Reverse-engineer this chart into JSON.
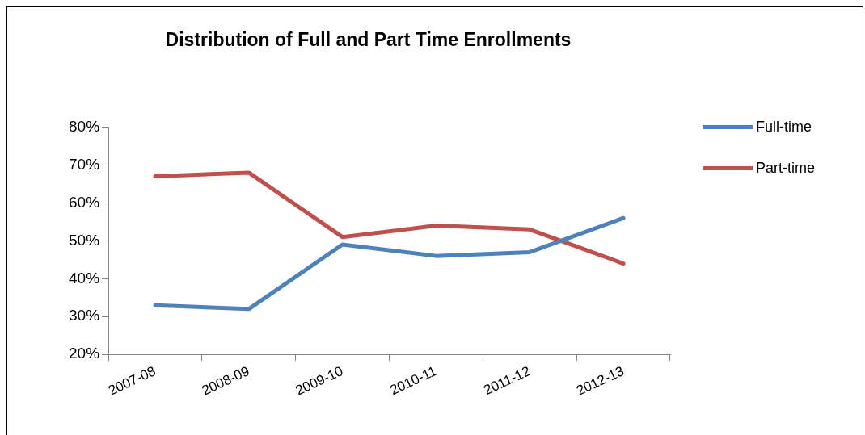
{
  "chart_data": {
    "type": "line",
    "title": "Distribution of Full and Part Time Enrollments",
    "categories": [
      "2007-08",
      "2008-09",
      "2009-10",
      "2010-11",
      "2011-12",
      "2012-13"
    ],
    "series": [
      {
        "name": "Full-time",
        "color": "#4f81bd",
        "values": [
          33,
          32,
          49,
          46,
          47,
          56
        ]
      },
      {
        "name": "Part-time",
        "color": "#c0504d",
        "values": [
          67,
          68,
          51,
          54,
          53,
          44
        ]
      }
    ],
    "ylim": [
      20,
      80
    ],
    "yticks": [
      {
        "value": 20,
        "label": "20%"
      },
      {
        "value": 30,
        "label": "30%"
      },
      {
        "value": 40,
        "label": "40%"
      },
      {
        "value": 50,
        "label": "50%"
      },
      {
        "value": 60,
        "label": "60%"
      },
      {
        "value": 70,
        "label": "70%"
      },
      {
        "value": 80,
        "label": "80%"
      }
    ],
    "legend": "top right",
    "marker": "none",
    "line_style": "solid",
    "grid": false
  }
}
